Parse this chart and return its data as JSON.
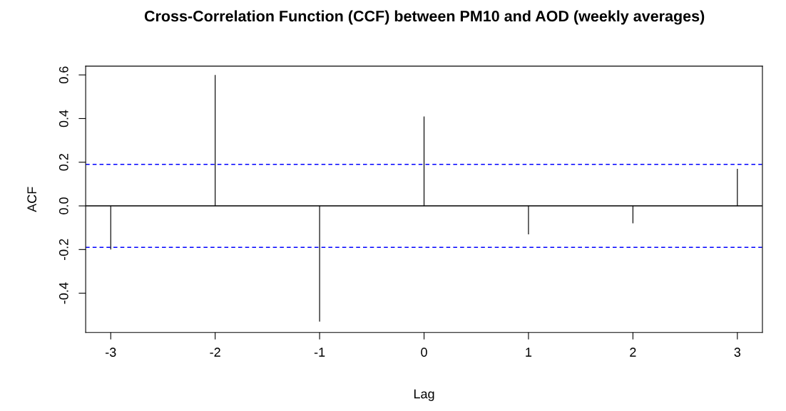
{
  "chart_data": {
    "type": "bar",
    "title": "Cross-Correlation Function (CCF) between PM10 and AOD (weekly averages)",
    "xlabel": "Lag",
    "ylabel": "ACF",
    "x": [
      -3,
      -2,
      -1,
      0,
      1,
      2,
      3
    ],
    "series": [
      {
        "color": "#000000",
        "values": [
          -0.2,
          0.6,
          -0.53,
          0.41,
          -0.13,
          -0.08,
          0.17
        ]
      }
    ],
    "xlim": [
      -3.24,
      3.24
    ],
    "xticks": [
      -3,
      -2,
      -1,
      0,
      1,
      2,
      3
    ],
    "ylim": [
      -0.58,
      0.64
    ],
    "yticks": [
      -0.4,
      -0.2,
      {
        "value": 0,
        "label": "0.0"
      },
      0.2,
      0.4,
      0.6
    ],
    "ref_lines": [
      {
        "axis": "y",
        "value": 0,
        "color": "#000000",
        "line_style": "solid"
      },
      {
        "axis": "y",
        "value": 0.19,
        "color": "#0000ff",
        "line_style": "dashed"
      },
      {
        "axis": "y",
        "value": -0.19,
        "color": "#0000ff",
        "line_style": "dashed"
      }
    ],
    "grid": false
  }
}
